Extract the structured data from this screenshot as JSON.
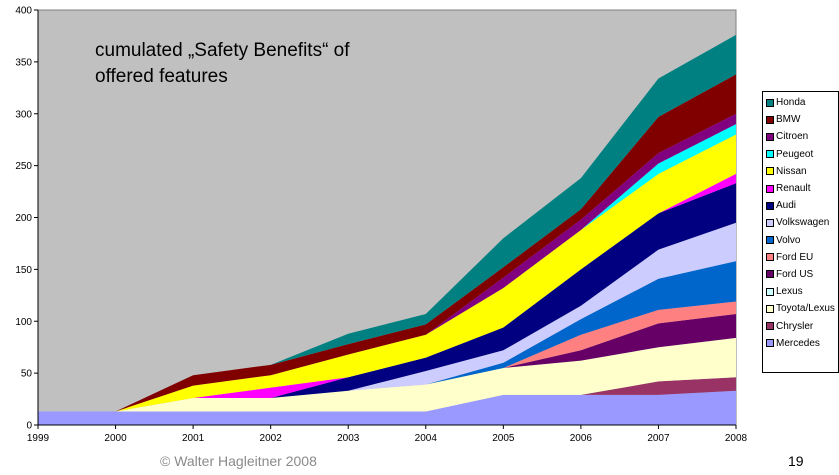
{
  "chart_data": {
    "type": "area",
    "stacked": true,
    "annotation": "cumulated „Safety Benefits“ of offered features",
    "x": [
      1999,
      2000,
      2001,
      2002,
      2003,
      2004,
      2005,
      2006,
      2007,
      2008
    ],
    "x_tick_labels": [
      "1999",
      "2000",
      "2001",
      "2002",
      "2003",
      "2004",
      "2005",
      "2006",
      "2007",
      "2008"
    ],
    "ylim": [
      0,
      400
    ],
    "y_ticks": [
      0,
      50,
      100,
      150,
      200,
      250,
      300,
      350,
      400
    ],
    "grid": false,
    "plot_background": "#c0c0c0",
    "legend_position": "right",
    "series": [
      {
        "name": "Mercedes",
        "color": "#9999ff",
        "values": [
          13,
          13,
          13,
          13,
          13,
          13,
          29,
          29,
          29,
          33
        ]
      },
      {
        "name": "Chrysler",
        "color": "#993366",
        "values": [
          0,
          0,
          0,
          0,
          0,
          0,
          0,
          0,
          13,
          13
        ]
      },
      {
        "name": "Toyota/Lexus",
        "color": "#ffffcc",
        "values": [
          0,
          0,
          13,
          13,
          20,
          26,
          26,
          33,
          33,
          38
        ]
      },
      {
        "name": "Lexus",
        "color": "#ccffff",
        "values": [
          0,
          0,
          0,
          0,
          0,
          0,
          0,
          0,
          0,
          0
        ]
      },
      {
        "name": "Ford US",
        "color": "#660066",
        "values": [
          0,
          0,
          0,
          0,
          0,
          0,
          0,
          10,
          23,
          23
        ]
      },
      {
        "name": "Ford EU",
        "color": "#ff8080",
        "values": [
          0,
          0,
          0,
          0,
          0,
          0,
          0,
          15,
          13,
          12
        ]
      },
      {
        "name": "Volvo",
        "color": "#0066cc",
        "values": [
          0,
          0,
          0,
          0,
          0,
          0,
          5,
          15,
          30,
          39
        ]
      },
      {
        "name": "Volkswagen",
        "color": "#ccccff",
        "values": [
          0,
          0,
          0,
          0,
          0,
          13,
          12,
          13,
          28,
          37
        ]
      },
      {
        "name": "Audi",
        "color": "#000080",
        "values": [
          0,
          0,
          0,
          0,
          13,
          13,
          22,
          35,
          35,
          38
        ]
      },
      {
        "name": "Renault",
        "color": "#ff00ff",
        "values": [
          0,
          0,
          0,
          10,
          0,
          0,
          0,
          0,
          0,
          9
        ]
      },
      {
        "name": "Nissan",
        "color": "#ffff00",
        "values": [
          0,
          0,
          12,
          12,
          22,
          22,
          38,
          38,
          38,
          38
        ]
      },
      {
        "name": "Peugeot",
        "color": "#00ffff",
        "values": [
          0,
          0,
          0,
          0,
          0,
          0,
          0,
          0,
          10,
          10
        ]
      },
      {
        "name": "Citroen",
        "color": "#800080",
        "values": [
          0,
          0,
          0,
          0,
          0,
          0,
          10,
          10,
          10,
          10
        ]
      },
      {
        "name": "BMW",
        "color": "#800000",
        "values": [
          0,
          0,
          10,
          10,
          10,
          10,
          10,
          10,
          35,
          38
        ]
      },
      {
        "name": "Honda",
        "color": "#008080",
        "values": [
          0,
          0,
          0,
          0,
          10,
          10,
          28,
          30,
          37,
          38
        ]
      }
    ]
  },
  "footer": "© Walter Hagleitner   2008",
  "page_number": "19"
}
